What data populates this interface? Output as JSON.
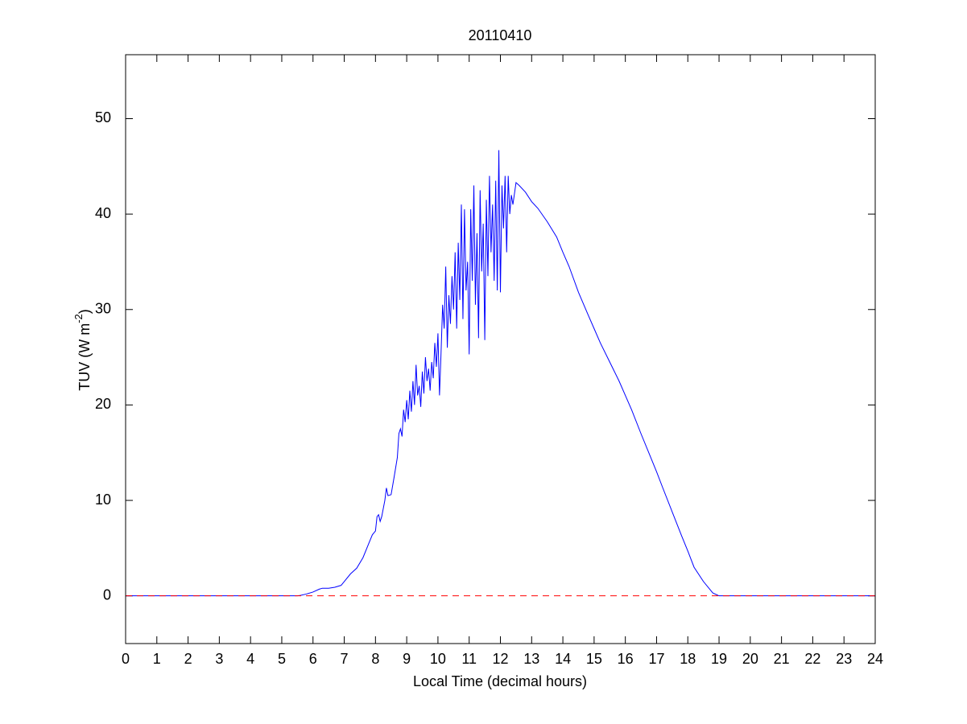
{
  "chart_data": {
    "type": "line",
    "title": "20110410",
    "xlabel": "Local Time (decimal hours)",
    "ylabel_main": "TUV (W m",
    "ylabel_sup": "-2",
    "ylabel_end": ")",
    "xlim": [
      0,
      24
    ],
    "ylim": [
      -5,
      56.7
    ],
    "xticks": [
      0,
      1,
      2,
      3,
      4,
      5,
      6,
      7,
      8,
      9,
      10,
      11,
      12,
      13,
      14,
      15,
      16,
      17,
      18,
      19,
      20,
      21,
      22,
      23,
      24
    ],
    "yticks": [
      0,
      10,
      20,
      30,
      40,
      50
    ],
    "grid": false,
    "series": [
      {
        "color": "#0000ff",
        "linestyle": "solid",
        "x": [
          0,
          5.5,
          5.6,
          5.8,
          6.0,
          6.2,
          6.3,
          6.5,
          6.7,
          6.9,
          7.0,
          7.2,
          7.4,
          7.6,
          7.8,
          7.9,
          8.0,
          8.05,
          8.1,
          8.15,
          8.2,
          8.3,
          8.35,
          8.4,
          8.5,
          8.6,
          8.7,
          8.75,
          8.8,
          8.85,
          8.9,
          8.95,
          9.0,
          9.05,
          9.1,
          9.15,
          9.2,
          9.25,
          9.3,
          9.35,
          9.4,
          9.45,
          9.5,
          9.55,
          9.6,
          9.65,
          9.7,
          9.75,
          9.8,
          9.85,
          9.9,
          9.95,
          10.0,
          10.05,
          10.1,
          10.15,
          10.2,
          10.25,
          10.3,
          10.35,
          10.4,
          10.45,
          10.5,
          10.55,
          10.6,
          10.65,
          10.7,
          10.75,
          10.8,
          10.85,
          10.9,
          10.95,
          11.0,
          11.05,
          11.1,
          11.15,
          11.2,
          11.25,
          11.3,
          11.35,
          11.4,
          11.45,
          11.5,
          11.55,
          11.6,
          11.65,
          11.7,
          11.75,
          11.8,
          11.85,
          11.9,
          11.95,
          12.0,
          12.05,
          12.1,
          12.15,
          12.2,
          12.25,
          12.3,
          12.35,
          12.4,
          12.5,
          12.6,
          12.8,
          13.0,
          13.2,
          13.5,
          13.8,
          14.0,
          14.2,
          14.5,
          14.8,
          15.0,
          15.2,
          15.5,
          15.8,
          16.0,
          16.2,
          16.5,
          16.8,
          17.0,
          17.2,
          17.5,
          17.8,
          18.0,
          18.2,
          18.5,
          18.8,
          19.0,
          24
        ],
        "values": [
          0,
          0,
          0.05,
          0.2,
          0.4,
          0.7,
          0.8,
          0.8,
          0.9,
          1.1,
          1.5,
          2.3,
          2.9,
          4.0,
          5.6,
          6.4,
          6.8,
          8.3,
          8.5,
          7.8,
          8.3,
          10.0,
          11.3,
          10.5,
          10.6,
          12.5,
          14.5,
          17.0,
          17.5,
          16.7,
          19.5,
          18.2,
          20.5,
          18.5,
          21.5,
          19.3,
          22.5,
          20.0,
          24.2,
          21.0,
          22.0,
          19.8,
          23.5,
          21.2,
          25.0,
          22.5,
          23.8,
          21.5,
          24.5,
          22.8,
          26.5,
          24.0,
          27.5,
          21.0,
          25.5,
          30.5,
          28.0,
          34.5,
          26.0,
          31.5,
          28.5,
          33.5,
          30.0,
          36.0,
          28.0,
          37.0,
          31.0,
          41.0,
          29.0,
          40.5,
          32.0,
          35.0,
          25.3,
          40.5,
          33.0,
          43.0,
          30.5,
          38.0,
          27.0,
          42.5,
          34.0,
          39.0,
          26.8,
          41.5,
          33.5,
          44.0,
          36.0,
          41.0,
          33.0,
          43.5,
          32.0,
          46.7,
          31.8,
          43.0,
          38.5,
          44.0,
          36.0,
          44.0,
          40.0,
          42.0,
          41.0,
          43.3,
          43.0,
          42.3,
          41.3,
          40.6,
          39.2,
          37.6,
          36.0,
          34.5,
          31.8,
          29.5,
          28.0,
          26.5,
          24.5,
          22.5,
          21.0,
          19.5,
          17.0,
          14.6,
          13.0,
          11.3,
          8.8,
          6.3,
          4.7,
          3.0,
          1.5,
          0.3,
          0,
          0
        ]
      },
      {
        "color": "#ff0000",
        "linestyle": "dashed",
        "x": [
          0,
          24
        ],
        "values": [
          0,
          0
        ]
      }
    ]
  }
}
